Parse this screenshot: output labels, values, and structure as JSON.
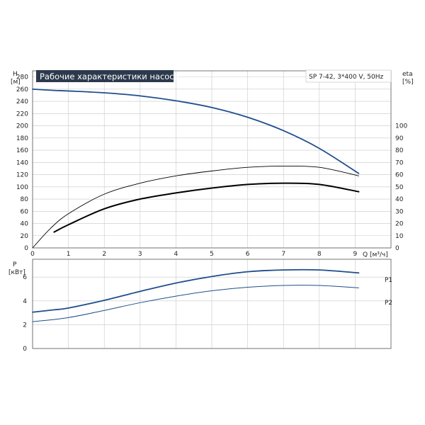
{
  "chart_data": [
    {
      "type": "line",
      "title": "Рабочие характеристики насоса",
      "model_label": "SP 7-42, 3*400 V, 50Hz",
      "xlabel": "Q [м³/ч]",
      "ylabel_left": "H",
      "ylabel_left_unit": "[м]",
      "ylabel_right": "eta",
      "ylabel_right_unit": "[%]",
      "xlim": [
        0,
        10
      ],
      "xticks": [
        0,
        1,
        2,
        3,
        4,
        5,
        6,
        7,
        8,
        9
      ],
      "ylim_left": [
        0,
        290
      ],
      "yticks_left": [
        0,
        20,
        40,
        60,
        80,
        100,
        120,
        140,
        160,
        180,
        200,
        220,
        240,
        260,
        280
      ],
      "yticks_right": [
        0,
        10,
        20,
        30,
        40,
        50,
        60,
        70,
        80,
        90,
        100
      ],
      "grid": true,
      "series": [
        {
          "axis": "left",
          "color": "#1f4e8c",
          "x": [
            0,
            0.6,
            1,
            2,
            3,
            4,
            5,
            6,
            7,
            8,
            9.1
          ],
          "y": [
            260,
            258,
            257,
            254,
            249,
            241,
            230,
            214,
            192,
            163,
            122
          ]
        },
        {
          "axis": "right",
          "color": "#000000",
          "x": [
            0,
            0.5,
            1,
            2,
            3,
            4,
            5,
            6,
            7,
            8,
            9.1
          ],
          "y": [
            0,
            16,
            28,
            44,
            53,
            59,
            63,
            66,
            67,
            66,
            59
          ]
        },
        {
          "axis": "right",
          "color": "#000000",
          "x": [
            0.6,
            1,
            2,
            3,
            4,
            5,
            6,
            7,
            8,
            9.1
          ],
          "y": [
            13,
            19,
            32,
            40,
            45,
            49,
            52,
            53,
            52,
            46
          ]
        }
      ]
    },
    {
      "type": "line",
      "ylabel": "P",
      "ylabel_unit": "[кВт]",
      "xlim": [
        0,
        10
      ],
      "ylim": [
        0,
        7.5
      ],
      "yticks": [
        0,
        2,
        4,
        6
      ],
      "grid": true,
      "series": [
        {
          "name": "P1",
          "color": "#1f4e8c",
          "x": [
            0,
            0.6,
            1,
            2,
            3,
            4,
            5,
            6,
            7,
            8,
            9.1
          ],
          "y": [
            3.05,
            3.25,
            3.4,
            4.05,
            4.8,
            5.5,
            6.05,
            6.45,
            6.6,
            6.6,
            6.35
          ]
        },
        {
          "name": "P2",
          "color": "#1f4e8c",
          "x": [
            0,
            1,
            2,
            3,
            4,
            5,
            6,
            7,
            8,
            9.1
          ],
          "y": [
            2.25,
            2.6,
            3.2,
            3.85,
            4.4,
            4.85,
            5.15,
            5.3,
            5.3,
            5.1
          ]
        }
      ]
    }
  ]
}
